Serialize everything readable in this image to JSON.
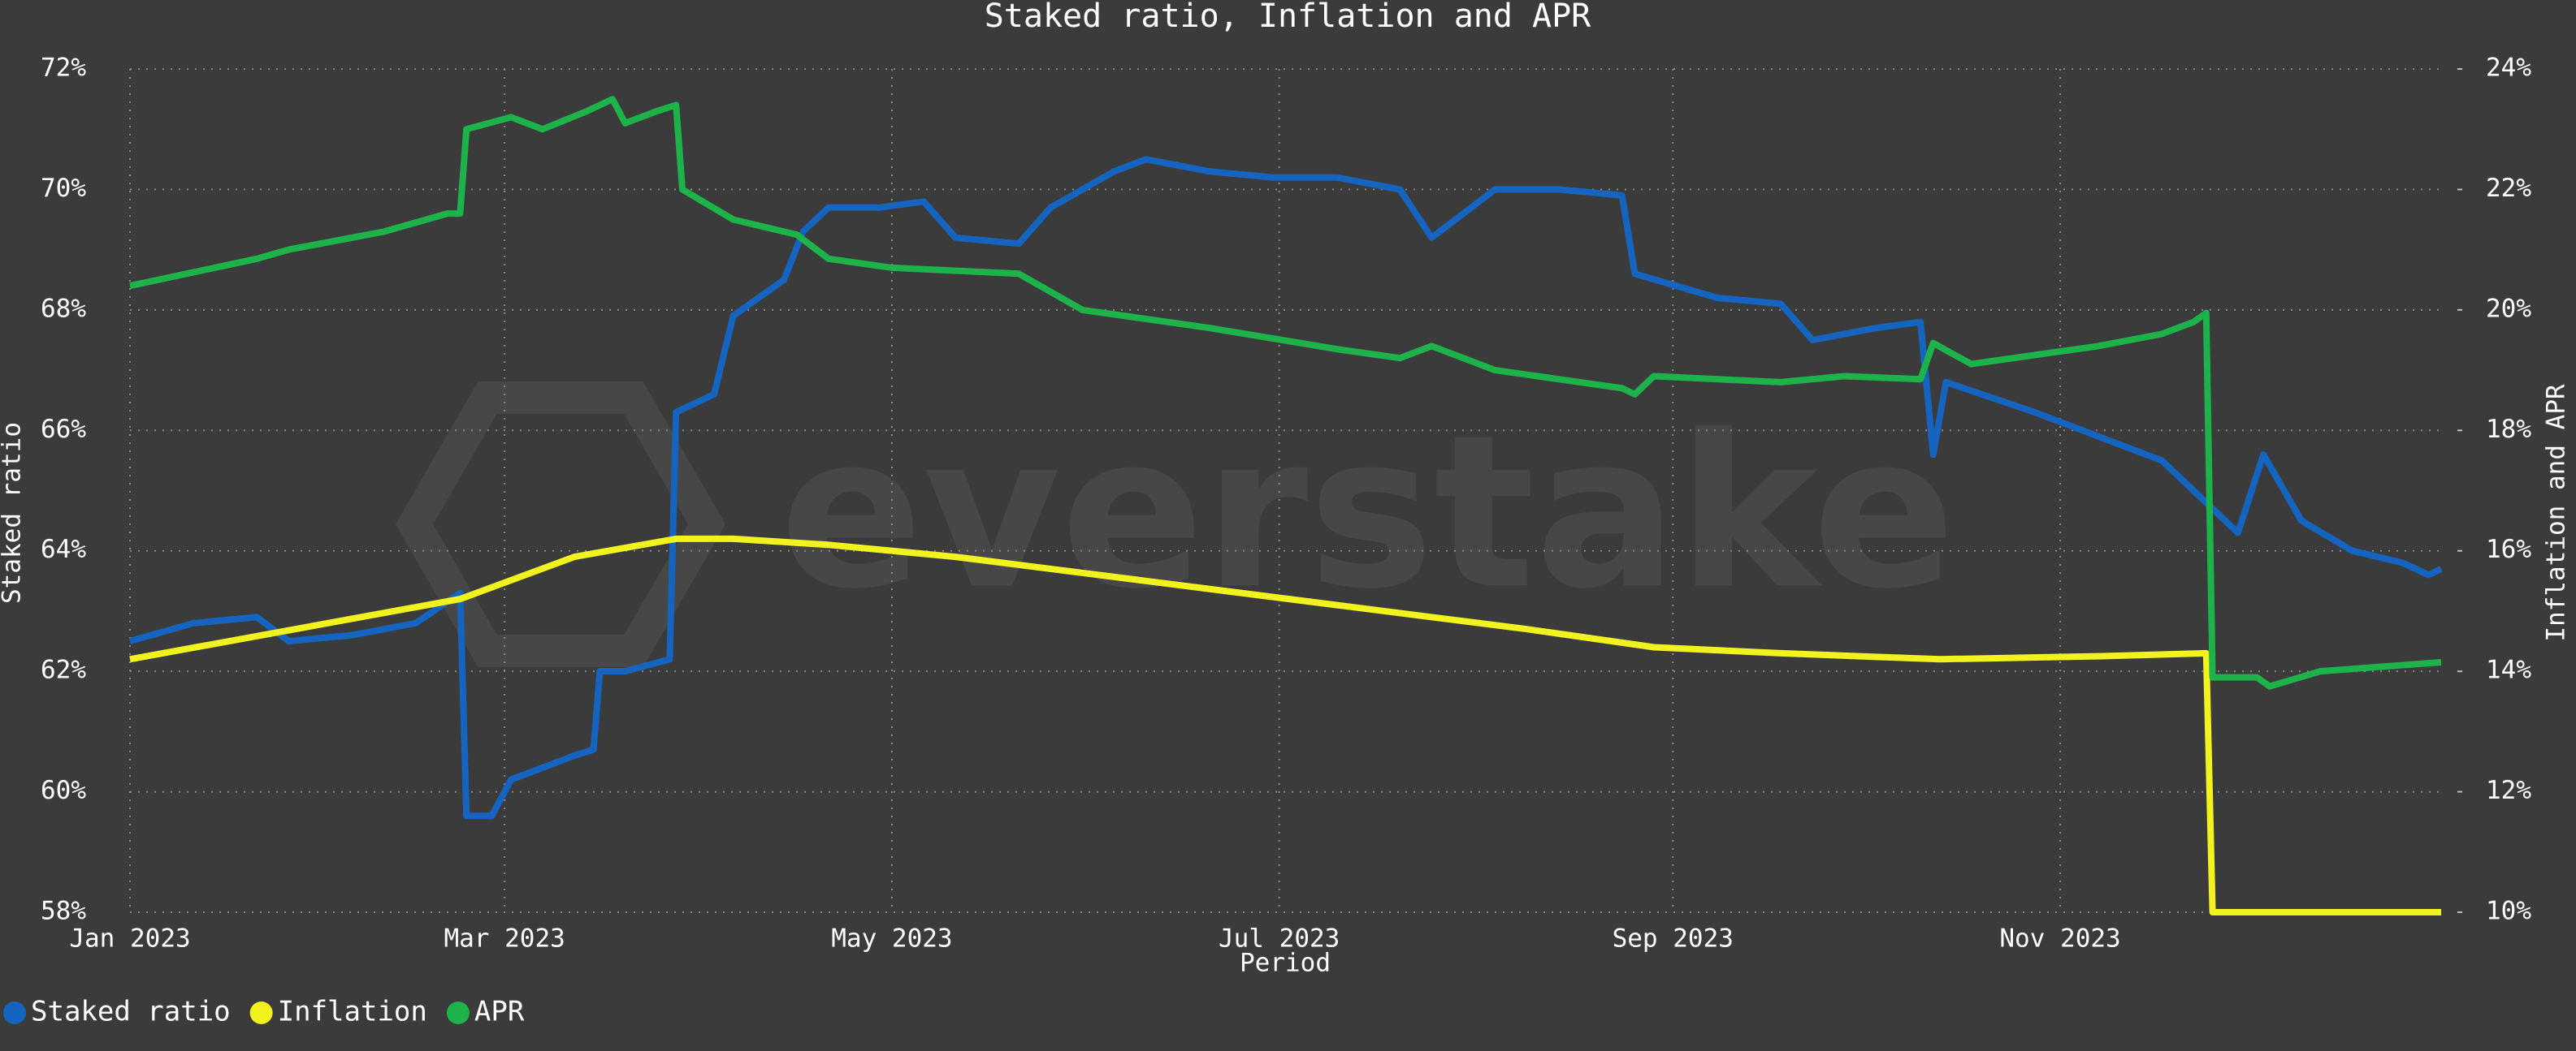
{
  "chart_data": {
    "type": "line",
    "title": "Staked ratio, Inflation and APR",
    "watermark": "everstake",
    "xlabel": "Period",
    "ylabel": "Staked ratio",
    "y2label": "Inflation and APR",
    "grid": true,
    "legend": "bottom-left",
    "xlim": [
      0,
      364
    ],
    "xticks": [
      {
        "value": 0,
        "label": "Jan 2023"
      },
      {
        "value": 59,
        "label": "Mar 2023"
      },
      {
        "value": 120,
        "label": "May 2023"
      },
      {
        "value": 181,
        "label": "Jul 2023"
      },
      {
        "value": 243,
        "label": "Sep 2023"
      },
      {
        "value": 304,
        "label": "Nov 2023"
      }
    ],
    "ylim": [
      58,
      72
    ],
    "yticks": [
      {
        "value": 58,
        "label": "58%"
      },
      {
        "value": 60,
        "label": "60%"
      },
      {
        "value": 62,
        "label": "62%"
      },
      {
        "value": 64,
        "label": "64%"
      },
      {
        "value": 66,
        "label": "66%"
      },
      {
        "value": 68,
        "label": "68%"
      },
      {
        "value": 70,
        "label": "70%"
      },
      {
        "value": 72,
        "label": "72%"
      }
    ],
    "y2lim": [
      10,
      24
    ],
    "y2ticks": [
      {
        "value": 10,
        "label": "10%"
      },
      {
        "value": 12,
        "label": "12%"
      },
      {
        "value": 14,
        "label": "14%"
      },
      {
        "value": 16,
        "label": "16%"
      },
      {
        "value": 18,
        "label": "18%"
      },
      {
        "value": 20,
        "label": "20%"
      },
      {
        "value": 22,
        "label": "22%"
      },
      {
        "value": 24,
        "label": "24%"
      }
    ],
    "series": [
      {
        "name": "Staked ratio",
        "color": "#1565c0",
        "axis": "y",
        "x": [
          0,
          10,
          20,
          25,
          35,
          45,
          52,
          53,
          57,
          60,
          70,
          73,
          74,
          78,
          85,
          86,
          92,
          95,
          103,
          106,
          110,
          118,
          125,
          130,
          140,
          145,
          155,
          160,
          170,
          180,
          190,
          200,
          205,
          215,
          225,
          235,
          237,
          250,
          260,
          265,
          275,
          282,
          284,
          286,
          300,
          310,
          320,
          326,
          332,
          336,
          342,
          350,
          358,
          362,
          364
        ],
        "values": [
          62.5,
          62.8,
          62.9,
          62.5,
          62.6,
          62.8,
          63.3,
          59.6,
          59.6,
          60.2,
          60.6,
          60.7,
          62.0,
          62.0,
          62.2,
          66.3,
          66.6,
          67.9,
          68.5,
          69.3,
          69.7,
          69.7,
          69.8,
          69.2,
          69.1,
          69.7,
          70.3,
          70.5,
          70.3,
          70.2,
          70.2,
          70.0,
          69.2,
          70.0,
          70.0,
          69.9,
          68.6,
          68.2,
          68.1,
          67.5,
          67.7,
          67.8,
          65.6,
          66.8,
          66.3,
          65.9,
          65.5,
          64.9,
          64.3,
          65.6,
          64.5,
          64.0,
          63.8,
          63.6,
          63.7
        ]
      },
      {
        "name": "Inflation",
        "color": "#f2f21e",
        "axis": "y2",
        "x": [
          0,
          52,
          70,
          86,
          95,
          110,
          130,
          160,
          190,
          220,
          240,
          260,
          285,
          310,
          327,
          328,
          364
        ],
        "values": [
          14.2,
          15.2,
          15.9,
          16.2,
          16.2,
          16.1,
          15.9,
          15.5,
          15.1,
          14.7,
          14.4,
          14.3,
          14.2,
          14.25,
          14.3,
          10.0,
          10.0
        ]
      },
      {
        "name": "APR",
        "color": "#1db34a",
        "axis": "y2",
        "x": [
          0,
          20,
          25,
          40,
          50,
          52,
          53,
          60,
          65,
          72,
          76,
          78,
          83,
          86,
          87,
          95,
          105,
          110,
          120,
          140,
          150,
          170,
          190,
          200,
          205,
          215,
          235,
          237,
          240,
          260,
          270,
          282,
          284,
          290,
          310,
          320,
          325,
          327,
          328,
          335,
          337,
          345,
          364
        ],
        "values": [
          20.4,
          20.85,
          21.0,
          21.3,
          21.6,
          21.6,
          23.0,
          23.2,
          23.0,
          23.3,
          23.5,
          23.1,
          23.3,
          23.4,
          22.0,
          21.5,
          21.25,
          20.85,
          20.7,
          20.6,
          20.0,
          19.7,
          19.35,
          19.2,
          19.4,
          19.0,
          18.7,
          18.6,
          18.9,
          18.8,
          18.9,
          18.85,
          19.45,
          19.1,
          19.4,
          19.6,
          19.8,
          19.95,
          13.9,
          13.9,
          13.75,
          14.0,
          14.15
        ]
      }
    ]
  }
}
